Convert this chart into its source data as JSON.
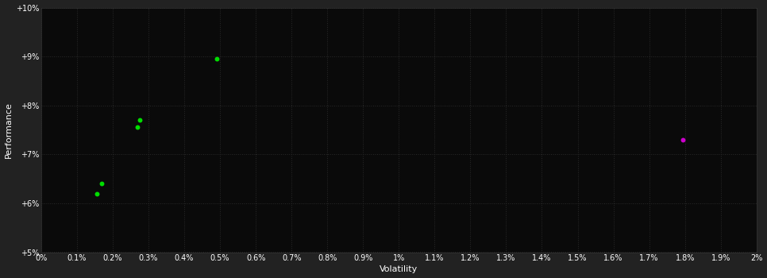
{
  "background_color": "#222222",
  "plot_bg_color": "#0a0a0a",
  "grid_color": "#2a2a2a",
  "text_color": "#ffffff",
  "xlabel": "Volatility",
  "ylabel": "Performance",
  "xlim": [
    0.0,
    0.02
  ],
  "ylim": [
    0.05,
    0.1
  ],
  "xticks": [
    0.0,
    0.001,
    0.002,
    0.003,
    0.004,
    0.005,
    0.006,
    0.007,
    0.008,
    0.009,
    0.01,
    0.011,
    0.012,
    0.013,
    0.014,
    0.015,
    0.016,
    0.017,
    0.018,
    0.019,
    0.02
  ],
  "yticks": [
    0.05,
    0.06,
    0.07,
    0.08,
    0.09,
    0.1
  ],
  "green_points": [
    [
      0.00155,
      0.062
    ],
    [
      0.0017,
      0.064
    ],
    [
      0.0027,
      0.0755
    ],
    [
      0.00275,
      0.077
    ],
    [
      0.0049,
      0.0895
    ]
  ],
  "magenta_points": [
    [
      0.01795,
      0.073
    ]
  ],
  "point_size": 18
}
